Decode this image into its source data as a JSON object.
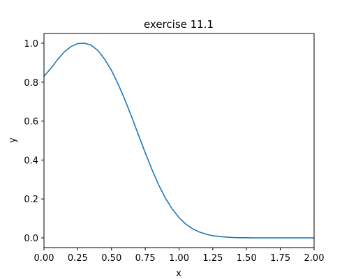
{
  "chart_data": {
    "type": "line",
    "title": "exercise 11.1",
    "xlabel": "x",
    "ylabel": "y",
    "xlim": [
      0,
      2
    ],
    "ylim": [
      -0.05,
      1.05
    ],
    "grid": false,
    "legend": "none",
    "x_ticks": [
      "0.00",
      "0.25",
      "0.50",
      "0.75",
      "1.00",
      "1.25",
      "1.50",
      "1.75",
      "2.00"
    ],
    "y_ticks": [
      "0.0",
      "0.2",
      "0.4",
      "0.6",
      "0.8",
      "1.0"
    ],
    "series": [
      {
        "color": "#1f77b4",
        "x": [
          0.0,
          0.05,
          0.1,
          0.15,
          0.2,
          0.25,
          0.3,
          0.35,
          0.4,
          0.45,
          0.5,
          0.55,
          0.6,
          0.65,
          0.7,
          0.75,
          0.8,
          0.85,
          0.9,
          0.95,
          1.0,
          1.05,
          1.1,
          1.15,
          1.2,
          1.25,
          1.3,
          1.35,
          1.4,
          1.45,
          1.5,
          1.55,
          1.6,
          1.65,
          1.7,
          1.75,
          1.8,
          1.85,
          1.9,
          1.95,
          2.0
        ],
        "y": [
          0.83,
          0.87,
          0.915,
          0.955,
          0.983,
          0.998,
          1.0,
          0.99,
          0.962,
          0.917,
          0.86,
          0.789,
          0.708,
          0.62,
          0.528,
          0.437,
          0.35,
          0.271,
          0.203,
          0.148,
          0.104,
          0.071,
          0.047,
          0.03,
          0.019,
          0.011,
          0.007,
          0.004,
          0.002,
          0.001,
          0.001,
          0.0,
          0.0,
          0.0,
          0.0,
          0.0,
          0.0,
          0.0,
          0.0,
          0.0,
          0.0
        ]
      }
    ]
  }
}
